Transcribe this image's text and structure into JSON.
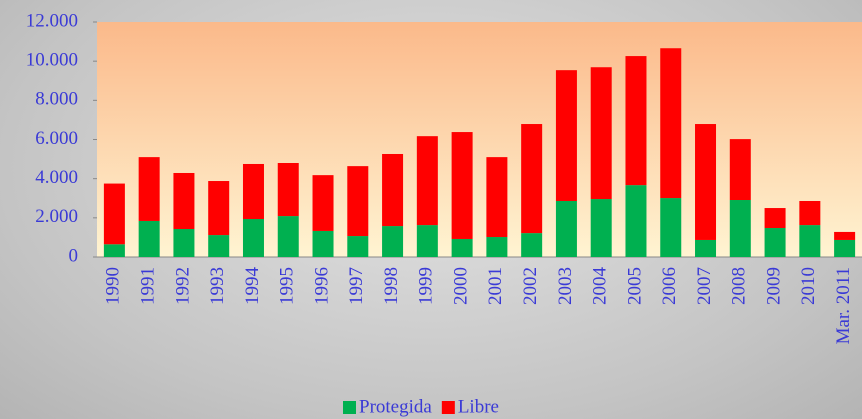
{
  "chart_data": {
    "type": "stacked_bar",
    "categories": [
      "1990",
      "1991",
      "1992",
      "1993",
      "1994",
      "1995",
      "1996",
      "1997",
      "1998",
      "1999",
      "2000",
      "2001",
      "2002",
      "2003",
      "2004",
      "2005",
      "2006",
      "2007",
      "2008",
      "2009",
      "2010",
      "Mar. 2011"
    ],
    "series": [
      {
        "name": "Protegida",
        "color": "#00b050",
        "values": [
          650,
          1840,
          1430,
          1120,
          1940,
          2090,
          1330,
          1070,
          1580,
          1630,
          920,
          1020,
          1220,
          2860,
          2960,
          3670,
          3010,
          870,
          2910,
          1480,
          1630,
          870
        ]
      },
      {
        "name": "Libre",
        "color": "#ff0000",
        "values": [
          3100,
          3260,
          2860,
          2760,
          2810,
          2710,
          2850,
          3570,
          3680,
          4540,
          5460,
          4080,
          5570,
          6680,
          6730,
          6590,
          7650,
          5920,
          3110,
          1020,
          1230,
          410
        ]
      }
    ],
    "ylim": [
      0,
      12000
    ],
    "yticks": [
      0,
      {
        "value": 2000,
        "label": "2.000"
      },
      {
        "value": 4000,
        "label": "4.000"
      },
      {
        "value": 6000,
        "label": "6.000"
      },
      {
        "value": 8000,
        "label": "8.000"
      },
      {
        "value": 10000,
        "label": "10.000"
      },
      {
        "value": 12000,
        "label": "12.000"
      }
    ],
    "grid": false,
    "legend": "bottom"
  }
}
